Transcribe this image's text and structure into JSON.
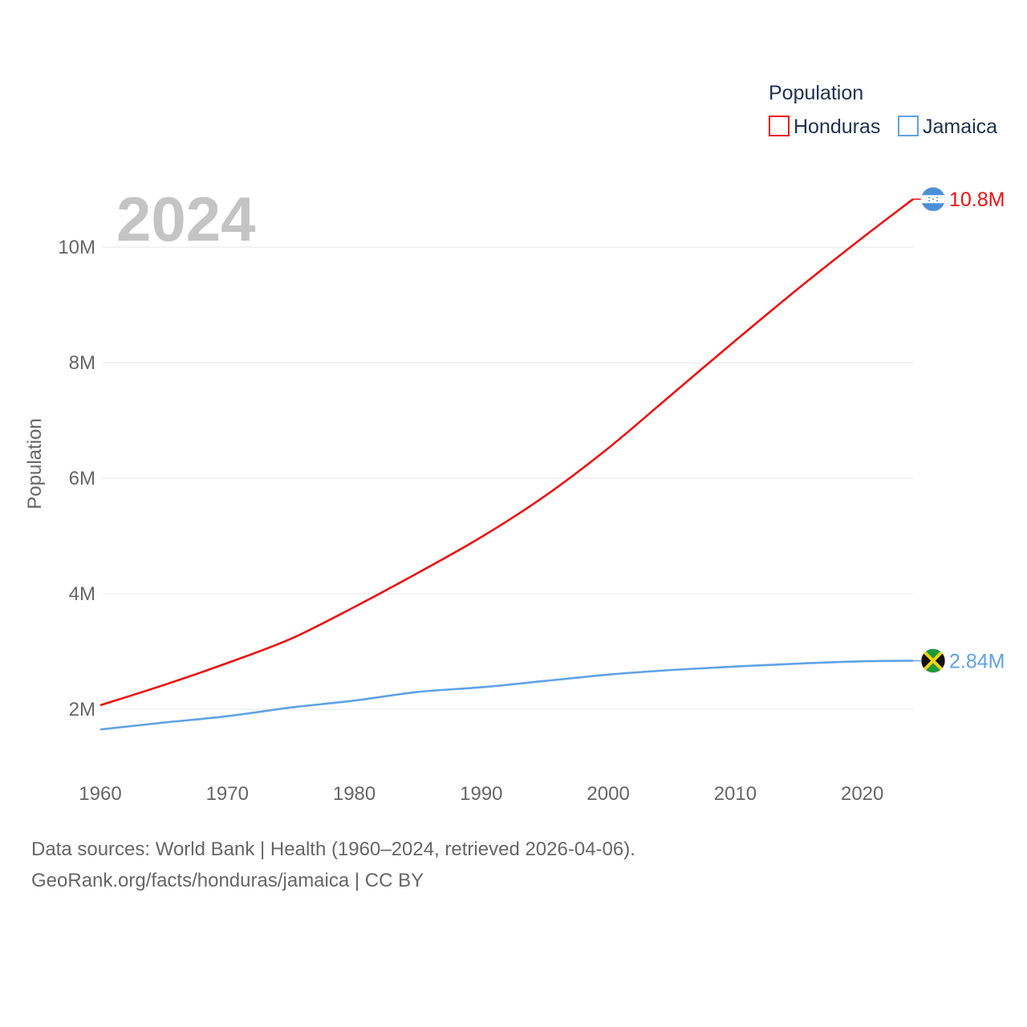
{
  "chart_data": {
    "type": "line",
    "year_label": "2024",
    "legend_title": "Population",
    "ylabel": "Population",
    "xlabel": "",
    "xlim": [
      1960,
      2024
    ],
    "ylim": [
      1000000,
      11500000
    ],
    "x_ticks": [
      1960,
      1970,
      1980,
      1990,
      2000,
      2010,
      2020
    ],
    "x_tick_labels": [
      "1960",
      "1970",
      "1980",
      "1990",
      "2000",
      "2010",
      "2020"
    ],
    "y_ticks": [
      2000000,
      4000000,
      6000000,
      8000000,
      10000000
    ],
    "y_tick_labels": [
      "2M",
      "4M",
      "6M",
      "8M",
      "10M"
    ],
    "grid": true,
    "legend_position": "top-right",
    "series": [
      {
        "name": "Honduras",
        "color": "#ee1111",
        "end_label": "10.8M",
        "flag_icon": "honduras-flag-icon",
        "x": [
          1960,
          1965,
          1970,
          1975,
          1980,
          1985,
          1990,
          1995,
          2000,
          2005,
          2010,
          2015,
          2020,
          2024
        ],
        "values": [
          2070000,
          2420000,
          2800000,
          3220000,
          3770000,
          4360000,
          4980000,
          5690000,
          6520000,
          7450000,
          8380000,
          9290000,
          10160000,
          10830000
        ]
      },
      {
        "name": "Jamaica",
        "color": "#5ea2e5",
        "end_label": "2.84M",
        "flag_icon": "jamaica-flag-icon",
        "x": [
          1960,
          1965,
          1970,
          1975,
          1980,
          1985,
          1990,
          1995,
          2000,
          2005,
          2010,
          2015,
          2020,
          2024
        ],
        "values": [
          1650000,
          1770000,
          1880000,
          2030000,
          2150000,
          2300000,
          2380000,
          2490000,
          2600000,
          2680000,
          2740000,
          2790000,
          2830000,
          2840000
        ]
      }
    ]
  },
  "source": {
    "line1": "Data sources: World Bank | Health (1960–2024, retrieved 2026-04-06).",
    "line2": "GeoRank.org/facts/honduras/jamaica | CC BY"
  }
}
